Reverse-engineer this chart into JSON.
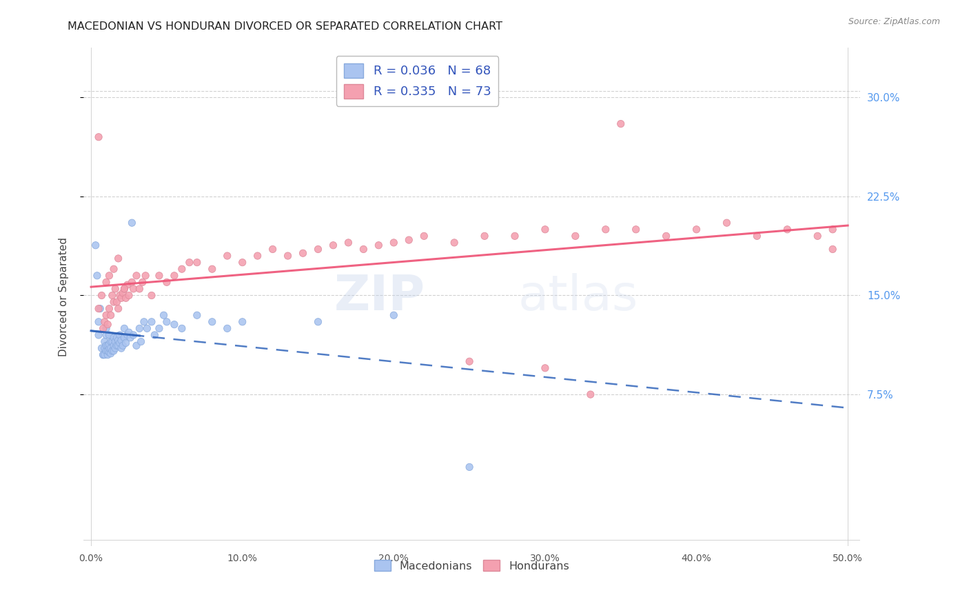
{
  "title": "MACEDONIAN VS HONDURAN DIVORCED OR SEPARATED CORRELATION CHART",
  "source": "Source: ZipAtlas.com",
  "ylabel": "Divorced or Separated",
  "xlim": [
    -0.005,
    0.508
  ],
  "ylim": [
    -0.04,
    0.338
  ],
  "ytick_vals": [
    0.075,
    0.15,
    0.225,
    0.3
  ],
  "ytick_labels": [
    "7.5%",
    "15.0%",
    "22.5%",
    "30.0%"
  ],
  "xtick_vals": [
    0.0,
    0.05,
    0.1,
    0.15,
    0.2,
    0.25,
    0.3,
    0.35,
    0.4,
    0.45,
    0.5
  ],
  "xtick_labels": [
    "0.0%",
    "",
    "10.0%",
    "",
    "20.0%",
    "",
    "30.0%",
    "",
    "40.0%",
    "",
    "50.0%"
  ],
  "bg_color": "#ffffff",
  "grid_color": "#cccccc",
  "mac_face_color": "#aac4f0",
  "mac_edge_color": "#88aadd",
  "hon_face_color": "#f4a0b0",
  "hon_edge_color": "#dd8899",
  "mac_line_color": "#3366bb",
  "hon_line_color": "#ee5577",
  "legend_text_color": "#3355bb",
  "right_axis_color": "#5599ee",
  "mac_R": 0.036,
  "mac_N": 68,
  "hon_R": 0.335,
  "hon_N": 73,
  "macedonians_label": "Macedonians",
  "hondurans_label": "Hondurans",
  "watermark_zip": "ZIP",
  "watermark_atlas": "atlas",
  "mac_x": [
    0.003,
    0.004,
    0.005,
    0.005,
    0.006,
    0.007,
    0.008,
    0.008,
    0.009,
    0.009,
    0.009,
    0.01,
    0.01,
    0.01,
    0.01,
    0.011,
    0.011,
    0.011,
    0.012,
    0.012,
    0.012,
    0.012,
    0.013,
    0.013,
    0.013,
    0.014,
    0.014,
    0.015,
    0.015,
    0.015,
    0.016,
    0.016,
    0.017,
    0.017,
    0.018,
    0.018,
    0.019,
    0.019,
    0.02,
    0.02,
    0.021,
    0.022,
    0.022,
    0.023,
    0.024,
    0.025,
    0.026,
    0.027,
    0.028,
    0.03,
    0.032,
    0.033,
    0.035,
    0.037,
    0.04,
    0.042,
    0.045,
    0.048,
    0.05,
    0.055,
    0.06,
    0.07,
    0.08,
    0.09,
    0.1,
    0.15,
    0.2,
    0.25
  ],
  "mac_y": [
    0.188,
    0.165,
    0.13,
    0.12,
    0.14,
    0.11,
    0.105,
    0.105,
    0.105,
    0.11,
    0.115,
    0.108,
    0.112,
    0.12,
    0.125,
    0.105,
    0.108,
    0.112,
    0.107,
    0.11,
    0.113,
    0.12,
    0.106,
    0.11,
    0.115,
    0.108,
    0.115,
    0.108,
    0.112,
    0.118,
    0.11,
    0.115,
    0.112,
    0.118,
    0.112,
    0.116,
    0.114,
    0.12,
    0.11,
    0.116,
    0.112,
    0.118,
    0.125,
    0.114,
    0.12,
    0.122,
    0.118,
    0.205,
    0.12,
    0.112,
    0.125,
    0.115,
    0.13,
    0.125,
    0.13,
    0.12,
    0.125,
    0.135,
    0.13,
    0.128,
    0.125,
    0.135,
    0.13,
    0.125,
    0.13,
    0.13,
    0.135,
    0.02
  ],
  "hon_x": [
    0.005,
    0.007,
    0.008,
    0.009,
    0.01,
    0.011,
    0.012,
    0.013,
    0.014,
    0.015,
    0.016,
    0.017,
    0.018,
    0.019,
    0.02,
    0.021,
    0.022,
    0.023,
    0.024,
    0.025,
    0.027,
    0.028,
    0.03,
    0.032,
    0.034,
    0.036,
    0.04,
    0.045,
    0.05,
    0.055,
    0.06,
    0.065,
    0.07,
    0.08,
    0.09,
    0.1,
    0.11,
    0.12,
    0.13,
    0.14,
    0.15,
    0.16,
    0.17,
    0.18,
    0.19,
    0.2,
    0.21,
    0.22,
    0.24,
    0.26,
    0.28,
    0.3,
    0.32,
    0.34,
    0.36,
    0.38,
    0.4,
    0.42,
    0.44,
    0.46,
    0.48,
    0.49,
    0.01,
    0.012,
    0.015,
    0.018,
    0.022,
    0.35,
    0.25,
    0.3,
    0.33,
    0.005,
    0.49
  ],
  "hon_y": [
    0.14,
    0.15,
    0.125,
    0.13,
    0.135,
    0.128,
    0.14,
    0.135,
    0.15,
    0.145,
    0.155,
    0.145,
    0.14,
    0.15,
    0.148,
    0.152,
    0.155,
    0.148,
    0.158,
    0.15,
    0.16,
    0.155,
    0.165,
    0.155,
    0.16,
    0.165,
    0.15,
    0.165,
    0.16,
    0.165,
    0.17,
    0.175,
    0.175,
    0.17,
    0.18,
    0.175,
    0.18,
    0.185,
    0.18,
    0.182,
    0.185,
    0.188,
    0.19,
    0.185,
    0.188,
    0.19,
    0.192,
    0.195,
    0.19,
    0.195,
    0.195,
    0.2,
    0.195,
    0.2,
    0.2,
    0.195,
    0.2,
    0.205,
    0.195,
    0.2,
    0.195,
    0.2,
    0.16,
    0.165,
    0.17,
    0.178,
    0.155,
    0.28,
    0.1,
    0.095,
    0.075,
    0.27,
    0.185
  ]
}
